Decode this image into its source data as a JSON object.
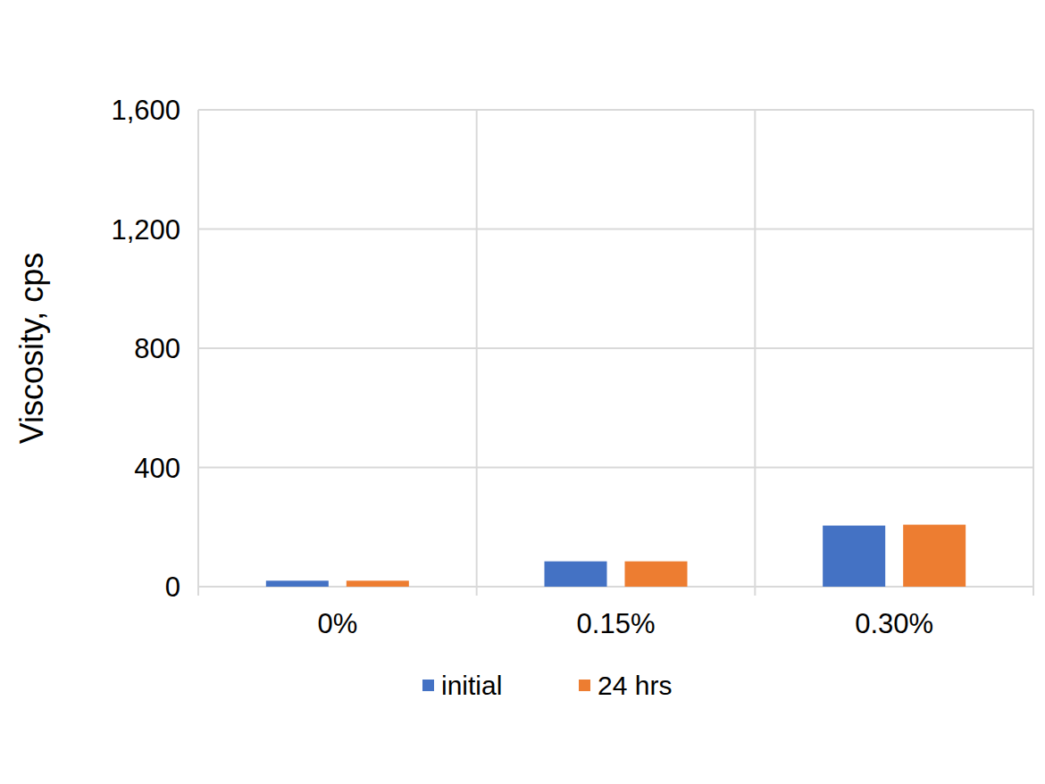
{
  "chart_data": {
    "type": "bar",
    "y_label": "Viscosity, cps",
    "categories": [
      "0%",
      "0.15%",
      "0.30%"
    ],
    "series": [
      {
        "name": "initial",
        "color": "#4472c4",
        "values": [
          20,
          85,
          205
        ]
      },
      {
        "name": "24 hrs",
        "color": "#ed7d31",
        "values": [
          20,
          85,
          208
        ]
      }
    ],
    "ylim": [
      0,
      1600
    ],
    "yticks": [
      0,
      400,
      800,
      {
        "value": 1200,
        "label": "1,200"
      },
      {
        "value": 1600,
        "label": "1,600"
      }
    ],
    "grid": true,
    "legend": "bottom"
  }
}
